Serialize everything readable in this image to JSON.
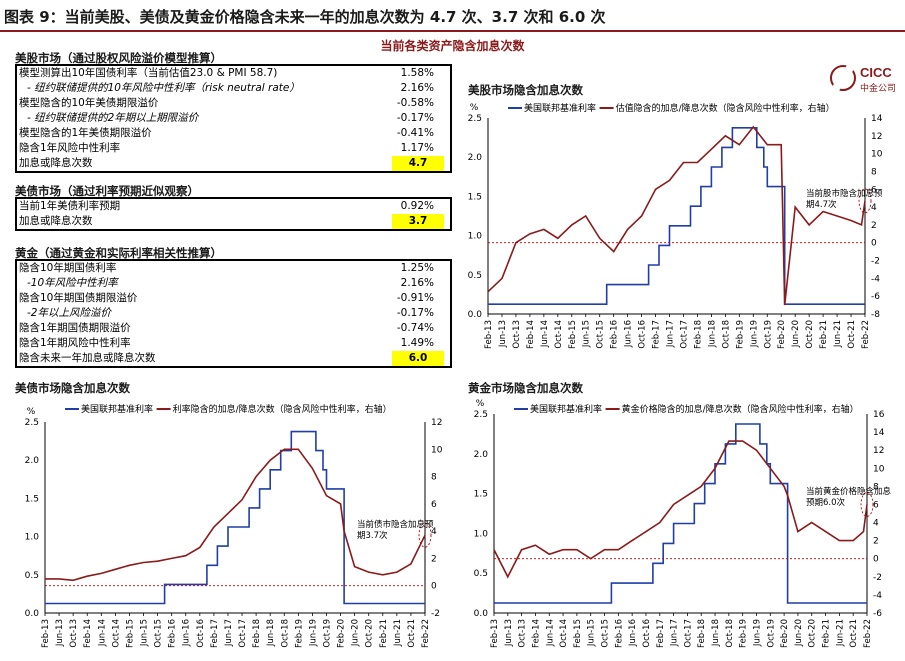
{
  "figure_title": "图表 9：当前美股、美债及黄金价格隐含未来一年的加息次数为 4.7 次、3.7 次和 6.0 次",
  "subtitle": "当前各类资产隐含加息次数",
  "logo": {
    "brand": "CICC",
    "name": "中金公司",
    "icon": "cicc-logo-icon"
  },
  "tables": [
    {
      "title": "美股市场（通过股权风险溢价模型推算）",
      "rows": [
        {
          "label": "模型测算出10年国债利率（当前估值23.0 & PMI 58.7)",
          "value": "1.58%",
          "italic": false
        },
        {
          "label": "- 纽约联储提供的10年风险中性利率（risk neutral rate）",
          "value": "2.16%",
          "italic": true
        },
        {
          "label": "模型隐含的10年美债期限溢价",
          "value": "-0.58%",
          "italic": false
        },
        {
          "label": "- 纽约联储提供的2年期以上期限溢价",
          "value": "-0.17%",
          "italic": true
        },
        {
          "label": "模型隐含的1年美债期限溢价",
          "value": "-0.41%",
          "italic": false
        },
        {
          "label": "隐含1年风险中性利率",
          "value": "1.17%",
          "italic": false
        },
        {
          "label": "加息或降息次数",
          "value": "4.7",
          "italic": false,
          "total": true
        }
      ]
    },
    {
      "title": "美债市场（通过利率预期近似观察）",
      "rows": [
        {
          "label": "当前1年美债利率预期",
          "value": "0.92%",
          "italic": false
        },
        {
          "label": "加息或降息次数",
          "value": "3.7",
          "italic": false,
          "total": true
        }
      ]
    },
    {
      "title": "黄金（通过黄金和实际利率相关性推算）",
      "rows": [
        {
          "label": "隐含10年期国债利率",
          "value": "1.25%",
          "italic": false
        },
        {
          "label": "-10年风险中性利率",
          "value": "2.16%",
          "italic": true
        },
        {
          "label": "隐含10年期国债期限溢价",
          "value": "-0.91%",
          "italic": false
        },
        {
          "label": "-2年以上风险溢价",
          "value": "-0.17%",
          "italic": true
        },
        {
          "label": "隐含1年期国债期限溢价",
          "value": "-0.74%",
          "italic": false
        },
        {
          "label": "隐含1年期风险中性利率",
          "value": "1.49%",
          "italic": false
        },
        {
          "label": "隐含未来一年加息或降息次数",
          "value": "6.0",
          "italic": false,
          "total": true
        }
      ]
    }
  ],
  "chart_data": [
    {
      "type": "line",
      "title": "美股市场隐含加息次数",
      "ylabel_left": "%",
      "ylim_left": [
        0,
        2.5
      ],
      "yticks_left": [
        0.0,
        0.5,
        1.0,
        1.5,
        2.0,
        2.5
      ],
      "ylim_right": [
        -8,
        14
      ],
      "yticks_right": [
        -8,
        -6,
        -4,
        -2,
        0,
        2,
        4,
        6,
        8,
        10,
        12,
        14
      ],
      "x_ticks": [
        "Feb-13",
        "Jun-13",
        "Oct-13",
        "Feb-14",
        "Jun-14",
        "Oct-14",
        "Feb-15",
        "Jun-15",
        "Oct-15",
        "Feb-16",
        "Jun-16",
        "Oct-16",
        "Feb-17",
        "Jun-17",
        "Oct-17",
        "Feb-18",
        "Jun-18",
        "Oct-18",
        "Feb-19",
        "Jun-19",
        "Oct-19",
        "Feb-20",
        "Jun-20",
        "Oct-20",
        "Feb-21",
        "Jun-21",
        "Oct-21",
        "Feb-22"
      ],
      "legend": [
        "美国联邦基准利率",
        "估值隐含的加息/降息次数（隐含风险中性利率，右轴）"
      ],
      "series": [
        {
          "name": "美国联邦基准利率",
          "axis": "left",
          "color": "#1f3ea8",
          "points": [
            [
              "Feb-13",
              0.125
            ],
            [
              "Dec-15",
              0.125
            ],
            [
              "Dec-15",
              0.375
            ],
            [
              "Dec-16",
              0.375
            ],
            [
              "Dec-16",
              0.625
            ],
            [
              "Mar-17",
              0.625
            ],
            [
              "Mar-17",
              0.875
            ],
            [
              "Jun-17",
              0.875
            ],
            [
              "Jun-17",
              1.125
            ],
            [
              "Dec-17",
              1.125
            ],
            [
              "Dec-17",
              1.375
            ],
            [
              "Mar-18",
              1.375
            ],
            [
              "Mar-18",
              1.625
            ],
            [
              "Jun-18",
              1.625
            ],
            [
              "Jun-18",
              1.875
            ],
            [
              "Sep-18",
              1.875
            ],
            [
              "Sep-18",
              2.125
            ],
            [
              "Dec-18",
              2.125
            ],
            [
              "Dec-18",
              2.375
            ],
            [
              "Jul-19",
              2.375
            ],
            [
              "Jul-19",
              2.125
            ],
            [
              "Sep-19",
              2.125
            ],
            [
              "Sep-19",
              1.875
            ],
            [
              "Oct-19",
              1.875
            ],
            [
              "Oct-19",
              1.625
            ],
            [
              "Mar-20",
              1.625
            ],
            [
              "Mar-20",
              0.125
            ],
            [
              "Feb-22",
              0.125
            ]
          ]
        },
        {
          "name": "估值隐含的加息/降息次数（隐含风险中性利率，右轴）",
          "axis": "right",
          "color": "#8b1a1a",
          "points": [
            [
              "Feb-13",
              -5.5
            ],
            [
              "Jun-13",
              -4
            ],
            [
              "Oct-13",
              0
            ],
            [
              "Feb-14",
              1
            ],
            [
              "Jun-14",
              1.5
            ],
            [
              "Oct-14",
              0.5
            ],
            [
              "Feb-15",
              2
            ],
            [
              "Jun-15",
              3
            ],
            [
              "Oct-15",
              0.5
            ],
            [
              "Feb-16",
              -1
            ],
            [
              "Jun-16",
              1.5
            ],
            [
              "Oct-16",
              3
            ],
            [
              "Feb-17",
              6
            ],
            [
              "Jun-17",
              7
            ],
            [
              "Oct-17",
              9
            ],
            [
              "Feb-18",
              9
            ],
            [
              "Jun-18",
              10.5
            ],
            [
              "Oct-18",
              12
            ],
            [
              "Feb-19",
              11
            ],
            [
              "Jun-19",
              13
            ],
            [
              "Oct-19",
              11
            ],
            [
              "Feb-20",
              11
            ],
            [
              "Mar-20",
              -7
            ],
            [
              "Jun-20",
              4
            ],
            [
              "Oct-20",
              2
            ],
            [
              "Feb-21",
              3.5
            ],
            [
              "Jun-21",
              3
            ],
            [
              "Oct-21",
              2.5
            ],
            [
              "Jan-22",
              2
            ],
            [
              "Feb-22",
              4.7
            ]
          ]
        },
        {
          "name": "",
          "axis": "right",
          "color": "#c00000",
          "dashed": true,
          "points": [
            [
              "Feb-13",
              0
            ],
            [
              "Feb-22",
              0
            ]
          ]
        }
      ],
      "annotation": "当前股市隐含加息预期4.7次"
    },
    {
      "type": "line",
      "title": "美债市场隐含加息次数",
      "ylabel_left": "%",
      "ylim_left": [
        0,
        2.5
      ],
      "yticks_left": [
        0.0,
        0.5,
        1.0,
        1.5,
        2.0,
        2.5
      ],
      "ylim_right": [
        -2,
        12
      ],
      "yticks_right": [
        -2,
        0,
        2,
        4,
        6,
        8,
        10,
        12
      ],
      "x_ticks": [
        "Feb-13",
        "Jun-13",
        "Oct-13",
        "Feb-14",
        "Jun-14",
        "Oct-14",
        "Feb-15",
        "Jun-15",
        "Oct-15",
        "Feb-16",
        "Jun-16",
        "Oct-16",
        "Feb-17",
        "Jun-17",
        "Oct-17",
        "Feb-18",
        "Jun-18",
        "Oct-18",
        "Feb-19",
        "Jun-19",
        "Oct-19",
        "Feb-20",
        "Jun-20",
        "Oct-20",
        "Feb-21",
        "Jun-21",
        "Oct-21",
        "Feb-22"
      ],
      "legend": [
        "美国联邦基准利率",
        "利率隐含的加息/降息次数（隐含风险中性利率，右轴）"
      ],
      "series": [
        {
          "name": "美国联邦基准利率",
          "axis": "left",
          "color": "#1f3ea8",
          "points": [
            [
              "Feb-13",
              0.125
            ],
            [
              "Dec-15",
              0.125
            ],
            [
              "Dec-15",
              0.375
            ],
            [
              "Dec-16",
              0.375
            ],
            [
              "Dec-16",
              0.625
            ],
            [
              "Mar-17",
              0.625
            ],
            [
              "Mar-17",
              0.875
            ],
            [
              "Jun-17",
              0.875
            ],
            [
              "Jun-17",
              1.125
            ],
            [
              "Dec-17",
              1.125
            ],
            [
              "Dec-17",
              1.375
            ],
            [
              "Mar-18",
              1.375
            ],
            [
              "Mar-18",
              1.625
            ],
            [
              "Jun-18",
              1.625
            ],
            [
              "Jun-18",
              1.875
            ],
            [
              "Sep-18",
              1.875
            ],
            [
              "Sep-18",
              2.125
            ],
            [
              "Dec-18",
              2.125
            ],
            [
              "Dec-18",
              2.375
            ],
            [
              "Jul-19",
              2.375
            ],
            [
              "Jul-19",
              2.125
            ],
            [
              "Sep-19",
              2.125
            ],
            [
              "Sep-19",
              1.875
            ],
            [
              "Oct-19",
              1.875
            ],
            [
              "Oct-19",
              1.625
            ],
            [
              "Mar-20",
              1.625
            ],
            [
              "Mar-20",
              0.125
            ],
            [
              "Feb-22",
              0.125
            ]
          ]
        },
        {
          "name": "利率隐含的加息/降息次数（隐含风险中性利率，右轴）",
          "axis": "right",
          "color": "#8b1a1a",
          "points": [
            [
              "Feb-13",
              0.5
            ],
            [
              "Jun-13",
              0.5
            ],
            [
              "Oct-13",
              0.4
            ],
            [
              "Feb-14",
              0.7
            ],
            [
              "Jun-14",
              0.9
            ],
            [
              "Oct-14",
              1.2
            ],
            [
              "Feb-15",
              1.5
            ],
            [
              "Jun-15",
              1.7
            ],
            [
              "Oct-15",
              1.8
            ],
            [
              "Feb-16",
              2.0
            ],
            [
              "Jun-16",
              2.2
            ],
            [
              "Oct-16",
              2.8
            ],
            [
              "Feb-17",
              4.3
            ],
            [
              "Jun-17",
              5.3
            ],
            [
              "Oct-17",
              6.3
            ],
            [
              "Feb-18",
              8.0
            ],
            [
              "Jun-18",
              9.2
            ],
            [
              "Oct-18",
              10.0
            ],
            [
              "Feb-19",
              10.0
            ],
            [
              "Jun-19",
              8.6
            ],
            [
              "Oct-19",
              6.6
            ],
            [
              "Feb-20",
              6.0
            ],
            [
              "Mar-20",
              4.0
            ],
            [
              "Jun-20",
              1.4
            ],
            [
              "Oct-20",
              1.0
            ],
            [
              "Feb-21",
              0.8
            ],
            [
              "Jun-21",
              1.0
            ],
            [
              "Oct-21",
              1.6
            ],
            [
              "Feb-22",
              3.7
            ]
          ]
        },
        {
          "name": "",
          "axis": "right",
          "color": "#c00000",
          "dashed": true,
          "points": [
            [
              "Feb-13",
              0
            ],
            [
              "Feb-22",
              0
            ]
          ]
        }
      ],
      "annotation": "当前债市隐含加息预期3.7次"
    },
    {
      "type": "line",
      "title": "黄金市场隐含加息次数",
      "ylabel_left": "%",
      "ylim_left": [
        0,
        2.5
      ],
      "yticks_left": [
        0.0,
        0.5,
        1.0,
        1.5,
        2.0,
        2.5
      ],
      "ylim_right": [
        -6,
        16
      ],
      "yticks_right": [
        -6,
        -4,
        -2,
        0,
        2,
        4,
        6,
        8,
        10,
        12,
        14,
        16
      ],
      "x_ticks": [
        "Feb-13",
        "Jun-13",
        "Oct-13",
        "Feb-14",
        "Jun-14",
        "Oct-14",
        "Feb-15",
        "Jun-15",
        "Oct-15",
        "Feb-16",
        "Jun-16",
        "Oct-16",
        "Feb-17",
        "Jun-17",
        "Oct-17",
        "Feb-18",
        "Jun-18",
        "Oct-18",
        "Feb-19",
        "Jun-19",
        "Oct-19",
        "Feb-20",
        "Jun-20",
        "Oct-20",
        "Feb-21",
        "Jun-21",
        "Oct-21",
        "Feb-22"
      ],
      "legend": [
        "美国联邦基准利率",
        "黄金价格隐含的加息/降息次数（隐含风险中性利率，右轴）"
      ],
      "series": [
        {
          "name": "美国联邦基准利率",
          "axis": "left",
          "color": "#1f3ea8",
          "points": [
            [
              "Feb-13",
              0.125
            ],
            [
              "Dec-15",
              0.125
            ],
            [
              "Dec-15",
              0.375
            ],
            [
              "Dec-16",
              0.375
            ],
            [
              "Dec-16",
              0.625
            ],
            [
              "Mar-17",
              0.625
            ],
            [
              "Mar-17",
              0.875
            ],
            [
              "Jun-17",
              0.875
            ],
            [
              "Jun-17",
              1.125
            ],
            [
              "Dec-17",
              1.125
            ],
            [
              "Dec-17",
              1.375
            ],
            [
              "Mar-18",
              1.375
            ],
            [
              "Mar-18",
              1.625
            ],
            [
              "Jun-18",
              1.625
            ],
            [
              "Jun-18",
              1.875
            ],
            [
              "Sep-18",
              1.875
            ],
            [
              "Sep-18",
              2.125
            ],
            [
              "Dec-18",
              2.125
            ],
            [
              "Dec-18",
              2.375
            ],
            [
              "Jul-19",
              2.375
            ],
            [
              "Jul-19",
              2.125
            ],
            [
              "Sep-19",
              2.125
            ],
            [
              "Sep-19",
              1.875
            ],
            [
              "Oct-19",
              1.875
            ],
            [
              "Oct-19",
              1.625
            ],
            [
              "Mar-20",
              1.625
            ],
            [
              "Mar-20",
              0.125
            ],
            [
              "Feb-22",
              0.125
            ]
          ]
        },
        {
          "name": "黄金价格隐含的加息/降息次数（隐含风险中性利率，右轴）",
          "axis": "right",
          "color": "#8b1a1a",
          "points": [
            [
              "Feb-13",
              1
            ],
            [
              "Jun-13",
              -2
            ],
            [
              "Oct-13",
              1
            ],
            [
              "Feb-14",
              1.5
            ],
            [
              "Jun-14",
              0.5
            ],
            [
              "Oct-14",
              1
            ],
            [
              "Feb-15",
              1
            ],
            [
              "Jun-15",
              0
            ],
            [
              "Oct-15",
              1
            ],
            [
              "Feb-16",
              1
            ],
            [
              "Jun-16",
              2
            ],
            [
              "Oct-16",
              3
            ],
            [
              "Feb-17",
              4
            ],
            [
              "Jun-17",
              6
            ],
            [
              "Oct-17",
              7
            ],
            [
              "Feb-18",
              8
            ],
            [
              "Jun-18",
              10
            ],
            [
              "Oct-18",
              13
            ],
            [
              "Feb-19",
              13
            ],
            [
              "Jun-19",
              12
            ],
            [
              "Oct-19",
              10
            ],
            [
              "Feb-20",
              8
            ],
            [
              "Mar-20",
              7
            ],
            [
              "Jun-20",
              3
            ],
            [
              "Oct-20",
              4
            ],
            [
              "Feb-21",
              3
            ],
            [
              "Jun-21",
              2
            ],
            [
              "Oct-21",
              2
            ],
            [
              "Jan-22",
              3
            ],
            [
              "Feb-22",
              6.0
            ]
          ]
        },
        {
          "name": "",
          "axis": "right",
          "color": "#c00000",
          "dashed": true,
          "points": [
            [
              "Feb-13",
              0
            ],
            [
              "Feb-22",
              0
            ]
          ]
        }
      ],
      "annotation": "当前黄金价格隐含加息预期6.0次"
    }
  ]
}
